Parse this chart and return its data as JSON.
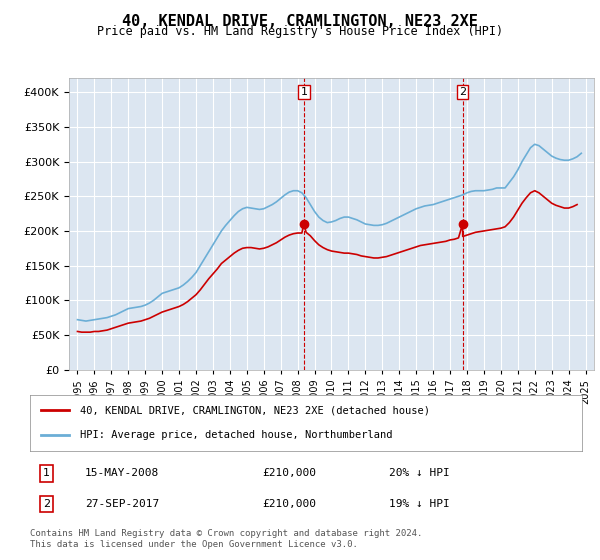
{
  "title": "40, KENDAL DRIVE, CRAMLINGTON, NE23 2XE",
  "subtitle": "Price paid vs. HM Land Registry's House Price Index (HPI)",
  "ylabel": "",
  "background_color": "#ffffff",
  "plot_bg_color": "#dce6f1",
  "grid_color": "#ffffff",
  "hpi_color": "#6baed6",
  "price_color": "#cc0000",
  "marker_color": "#cc0000",
  "purchase1": {
    "date_num": 2008.37,
    "price": 210000,
    "label": "1",
    "marker_x": 2008.37
  },
  "purchase2": {
    "date_num": 2017.74,
    "price": 210000,
    "label": "2",
    "marker_x": 2017.74
  },
  "ylim": [
    0,
    420000
  ],
  "yticks": [
    0,
    50000,
    100000,
    150000,
    200000,
    250000,
    300000,
    350000,
    400000
  ],
  "ytick_labels": [
    "£0",
    "£50K",
    "£100K",
    "£150K",
    "£200K",
    "£250K",
    "£300K",
    "£350K",
    "£400K"
  ],
  "xlim_start": 1994.5,
  "xlim_end": 2025.5,
  "legend1_label": "40, KENDAL DRIVE, CRAMLINGTON, NE23 2XE (detached house)",
  "legend2_label": "HPI: Average price, detached house, Northumberland",
  "table_rows": [
    {
      "label": "1",
      "date": "15-MAY-2008",
      "price": "£210,000",
      "hpi": "20% ↓ HPI"
    },
    {
      "label": "2",
      "date": "27-SEP-2017",
      "price": "£210,000",
      "hpi": "19% ↓ HPI"
    }
  ],
  "footer": "Contains HM Land Registry data © Crown copyright and database right 2024.\nThis data is licensed under the Open Government Licence v3.0.",
  "hpi_data": {
    "years": [
      1995,
      1995.25,
      1995.5,
      1995.75,
      1996,
      1996.25,
      1996.5,
      1996.75,
      1997,
      1997.25,
      1997.5,
      1997.75,
      1998,
      1998.25,
      1998.5,
      1998.75,
      1999,
      1999.25,
      1999.5,
      1999.75,
      2000,
      2000.25,
      2000.5,
      2000.75,
      2001,
      2001.25,
      2001.5,
      2001.75,
      2002,
      2002.25,
      2002.5,
      2002.75,
      2003,
      2003.25,
      2003.5,
      2003.75,
      2004,
      2004.25,
      2004.5,
      2004.75,
      2005,
      2005.25,
      2005.5,
      2005.75,
      2006,
      2006.25,
      2006.5,
      2006.75,
      2007,
      2007.25,
      2007.5,
      2007.75,
      2008,
      2008.25,
      2008.5,
      2008.75,
      2009,
      2009.25,
      2009.5,
      2009.75,
      2010,
      2010.25,
      2010.5,
      2010.75,
      2011,
      2011.25,
      2011.5,
      2011.75,
      2012,
      2012.25,
      2012.5,
      2012.75,
      2013,
      2013.25,
      2013.5,
      2013.75,
      2014,
      2014.25,
      2014.5,
      2014.75,
      2015,
      2015.25,
      2015.5,
      2015.75,
      2016,
      2016.25,
      2016.5,
      2016.75,
      2017,
      2017.25,
      2017.5,
      2017.75,
      2018,
      2018.25,
      2018.5,
      2018.75,
      2019,
      2019.25,
      2019.5,
      2019.75,
      2020,
      2020.25,
      2020.5,
      2020.75,
      2021,
      2021.25,
      2021.5,
      2021.75,
      2022,
      2022.25,
      2022.5,
      2022.75,
      2023,
      2023.25,
      2023.5,
      2023.75,
      2024,
      2024.25,
      2024.5,
      2024.75
    ],
    "values": [
      72000,
      71000,
      70000,
      71000,
      72000,
      73000,
      74000,
      75000,
      77000,
      79000,
      82000,
      85000,
      88000,
      89000,
      90000,
      91000,
      93000,
      96000,
      100000,
      105000,
      110000,
      112000,
      114000,
      116000,
      118000,
      122000,
      127000,
      133000,
      140000,
      150000,
      160000,
      170000,
      180000,
      190000,
      200000,
      208000,
      215000,
      222000,
      228000,
      232000,
      234000,
      233000,
      232000,
      231000,
      232000,
      235000,
      238000,
      242000,
      247000,
      252000,
      256000,
      258000,
      258000,
      255000,
      248000,
      238000,
      228000,
      220000,
      215000,
      212000,
      213000,
      215000,
      218000,
      220000,
      220000,
      218000,
      216000,
      213000,
      210000,
      209000,
      208000,
      208000,
      209000,
      211000,
      214000,
      217000,
      220000,
      223000,
      226000,
      229000,
      232000,
      234000,
      236000,
      237000,
      238000,
      240000,
      242000,
      244000,
      246000,
      248000,
      250000,
      252000,
      255000,
      257000,
      258000,
      258000,
      258000,
      259000,
      260000,
      262000,
      262000,
      262000,
      270000,
      278000,
      288000,
      300000,
      310000,
      320000,
      325000,
      323000,
      318000,
      313000,
      308000,
      305000,
      303000,
      302000,
      302000,
      304000,
      307000,
      312000
    ]
  },
  "price_data": {
    "years": [
      1995,
      1995.25,
      1995.5,
      1995.75,
      1996,
      1996.25,
      1996.5,
      1996.75,
      1997,
      1997.25,
      1997.5,
      1997.75,
      1998,
      1998.25,
      1998.5,
      1998.75,
      1999,
      1999.25,
      1999.5,
      1999.75,
      2000,
      2000.25,
      2000.5,
      2000.75,
      2001,
      2001.25,
      2001.5,
      2001.75,
      2002,
      2002.25,
      2002.5,
      2002.75,
      2003,
      2003.25,
      2003.5,
      2003.75,
      2004,
      2004.25,
      2004.5,
      2004.75,
      2005,
      2005.25,
      2005.5,
      2005.75,
      2006,
      2006.25,
      2006.5,
      2006.75,
      2007,
      2007.25,
      2007.5,
      2007.75,
      2008,
      2008.25,
      2008.37,
      2008.5,
      2008.75,
      2009,
      2009.25,
      2009.5,
      2009.75,
      2010,
      2010.25,
      2010.5,
      2010.75,
      2011,
      2011.25,
      2011.5,
      2011.75,
      2012,
      2012.25,
      2012.5,
      2012.75,
      2013,
      2013.25,
      2013.5,
      2013.75,
      2014,
      2014.25,
      2014.5,
      2014.75,
      2015,
      2015.25,
      2015.5,
      2015.75,
      2016,
      2016.25,
      2016.5,
      2016.75,
      2017,
      2017.25,
      2017.5,
      2017.74,
      2017.75,
      2018,
      2018.25,
      2018.5,
      2018.75,
      2019,
      2019.25,
      2019.5,
      2019.75,
      2020,
      2020.25,
      2020.5,
      2020.75,
      2021,
      2021.25,
      2021.5,
      2021.75,
      2022,
      2022.25,
      2022.5,
      2022.75,
      2023,
      2023.25,
      2023.5,
      2023.75,
      2024,
      2024.25,
      2024.5
    ],
    "values": [
      55000,
      54000,
      54000,
      54000,
      55000,
      55000,
      56000,
      57000,
      59000,
      61000,
      63000,
      65000,
      67000,
      68000,
      69000,
      70000,
      72000,
      74000,
      77000,
      80000,
      83000,
      85000,
      87000,
      89000,
      91000,
      94000,
      98000,
      103000,
      108000,
      115000,
      123000,
      131000,
      138000,
      145000,
      153000,
      158000,
      163000,
      168000,
      172000,
      175000,
      176000,
      176000,
      175000,
      174000,
      175000,
      177000,
      180000,
      183000,
      187000,
      191000,
      194000,
      196000,
      197000,
      197000,
      210000,
      198000,
      193000,
      186000,
      180000,
      176000,
      173000,
      171000,
      170000,
      169000,
      168000,
      168000,
      167000,
      166000,
      164000,
      163000,
      162000,
      161000,
      161000,
      162000,
      163000,
      165000,
      167000,
      169000,
      171000,
      173000,
      175000,
      177000,
      179000,
      180000,
      181000,
      182000,
      183000,
      184000,
      185000,
      187000,
      188000,
      190000,
      210000,
      192000,
      194000,
      196000,
      198000,
      199000,
      200000,
      201000,
      202000,
      203000,
      204000,
      206000,
      212000,
      220000,
      230000,
      240000,
      248000,
      255000,
      258000,
      255000,
      250000,
      245000,
      240000,
      237000,
      235000,
      233000,
      233000,
      235000,
      238000
    ]
  }
}
